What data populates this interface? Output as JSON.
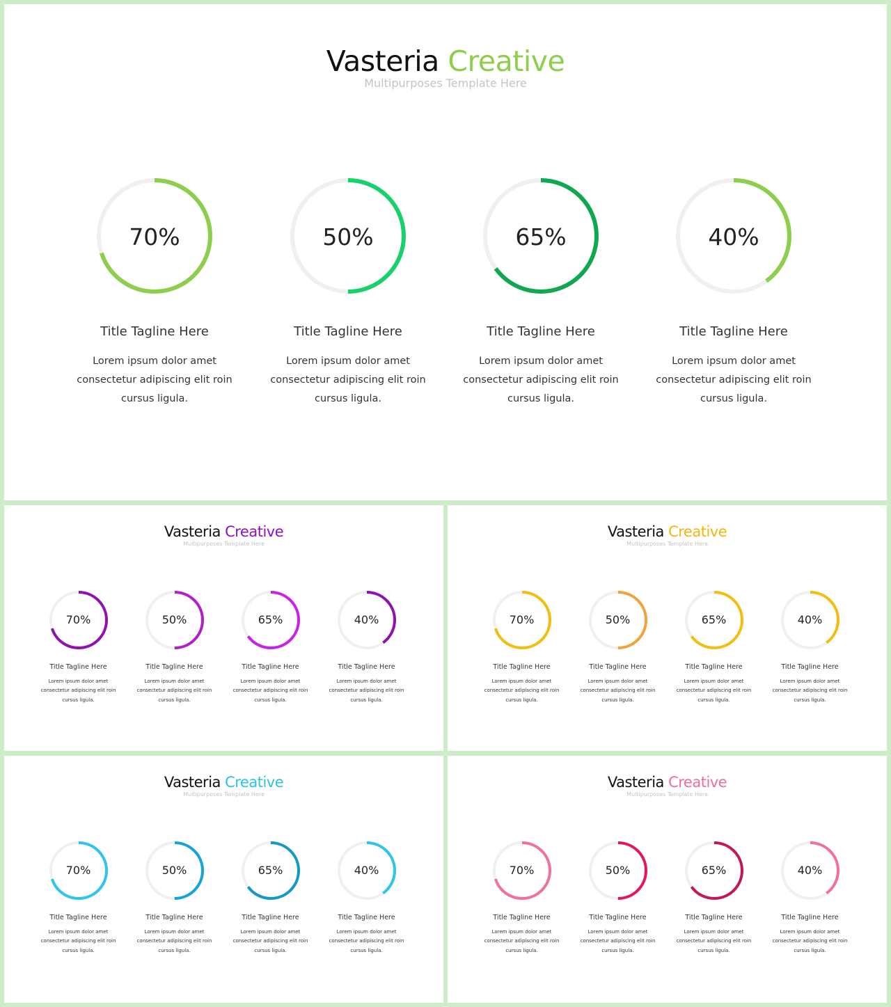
{
  "slides": [
    {
      "title_main": "Vasteria",
      "title_accent": "Creative",
      "accent_color": "#8dcf4d",
      "subtitle": "Multipurposes Template Here",
      "items": [
        {
          "percent": 70,
          "label": "70%",
          "color": "#8dcf4d",
          "tagline": "Title Tagline  Here",
          "desc": [
            "Lorem ipsum dolor amet",
            "consectetur adipiscing elit roin",
            "cursus ligula."
          ]
        },
        {
          "percent": 50,
          "label": "50%",
          "color": "#19d16a",
          "tagline": "Title Tagline  Here",
          "desc": [
            "Lorem ipsum dolor amet",
            "consectetur adipiscing elit roin",
            "cursus ligula."
          ]
        },
        {
          "percent": 65,
          "label": "65%",
          "color": "#0fa84e",
          "tagline": "Title Tagline  Here",
          "desc": [
            "Lorem ipsum dolor amet",
            "consectetur adipiscing elit roin",
            "cursus ligula."
          ]
        },
        {
          "percent": 40,
          "label": "40%",
          "color": "#8dcf4d",
          "tagline": "Title Tagline  Here",
          "desc": [
            "Lorem ipsum dolor amet",
            "consectetur adipiscing elit roin",
            "cursus ligula."
          ]
        }
      ]
    },
    {
      "title_main": "Vasteria",
      "title_accent": "Creative",
      "accent_color": "#8f12c1",
      "subtitle": "Multipurposes Template Here",
      "items": [
        {
          "percent": 70,
          "label": "70%",
          "color": "#8f12b0",
          "tagline": "Title Tagline  Here",
          "desc": [
            "Lorem ipsum dolor amet",
            "consectetur adipiscing elit roin",
            "cursus ligula."
          ]
        },
        {
          "percent": 50,
          "label": "50%",
          "color": "#b51ccc",
          "tagline": "Title Tagline  Here",
          "desc": [
            "Lorem ipsum dolor amet",
            "consectetur adipiscing elit roin",
            "cursus ligula."
          ]
        },
        {
          "percent": 65,
          "label": "65%",
          "color": "#c922e6",
          "tagline": "Title Tagline  Here",
          "desc": [
            "Lorem ipsum dolor amet",
            "consectetur adipiscing elit roin",
            "cursus ligula."
          ]
        },
        {
          "percent": 40,
          "label": "40%",
          "color": "#8f12b0",
          "tagline": "Title Tagline  Here",
          "desc": [
            "Lorem ipsum dolor amet",
            "consectetur adipiscing elit roin",
            "cursus ligula."
          ]
        }
      ]
    },
    {
      "title_main": "Vasteria",
      "title_accent": "Creative",
      "accent_color": "#f4b60e",
      "subtitle": "Multipurposes Template Here",
      "items": [
        {
          "percent": 70,
          "label": "70%",
          "color": "#f4bd12",
          "tagline": "Title Tagline  Here",
          "desc": [
            "Lorem ipsum dolor amet",
            "consectetur adipiscing elit roin",
            "cursus ligula."
          ]
        },
        {
          "percent": 50,
          "label": "50%",
          "color": "#f0a23c",
          "tagline": "Title Tagline  Here",
          "desc": [
            "Lorem ipsum dolor amet",
            "consectetur adipiscing elit roin",
            "cursus ligula."
          ]
        },
        {
          "percent": 65,
          "label": "65%",
          "color": "#f4bd12",
          "tagline": "Title Tagline  Here",
          "desc": [
            "Lorem ipsum dolor amet",
            "consectetur adipiscing elit roin",
            "cursus ligula."
          ]
        },
        {
          "percent": 40,
          "label": "40%",
          "color": "#f4bd12",
          "tagline": "Title Tagline  Here",
          "desc": [
            "Lorem ipsum dolor amet",
            "consectetur adipiscing elit roin",
            "cursus ligula."
          ]
        }
      ]
    },
    {
      "title_main": "Vasteria",
      "title_accent": "Creative",
      "accent_color": "#2dc1e8",
      "subtitle": "Multipurposes Template Here",
      "items": [
        {
          "percent": 70,
          "label": "70%",
          "color": "#2ec4ec",
          "tagline": "Title Tagline  Here",
          "desc": [
            "Lorem ipsum dolor amet",
            "consectetur adipiscing elit roin",
            "cursus ligula."
          ]
        },
        {
          "percent": 50,
          "label": "50%",
          "color": "#12a6d8",
          "tagline": "Title Tagline  Here",
          "desc": [
            "Lorem ipsum dolor amet",
            "consectetur adipiscing elit roin",
            "cursus ligula."
          ]
        },
        {
          "percent": 65,
          "label": "65%",
          "color": "#1598c6",
          "tagline": "Title Tagline  Here",
          "desc": [
            "Lorem ipsum dolor amet",
            "consectetur adipiscing elit roin",
            "cursus ligula."
          ]
        },
        {
          "percent": 40,
          "label": "40%",
          "color": "#2ec4ec",
          "tagline": "Title Tagline  Here",
          "desc": [
            "Lorem ipsum dolor amet",
            "consectetur adipiscing elit roin",
            "cursus ligula."
          ]
        }
      ]
    },
    {
      "title_main": "Vasteria",
      "title_accent": "Creative",
      "accent_color": "#ef6d9e",
      "subtitle": "Multipurposes Template Here",
      "items": [
        {
          "percent": 70,
          "label": "70%",
          "color": "#f0719f",
          "tagline": "Title Tagline  Here",
          "desc": [
            "Lorem ipsum dolor amet",
            "consectetur adipiscing elit roin",
            "cursus ligula."
          ]
        },
        {
          "percent": 50,
          "label": "50%",
          "color": "#e31663",
          "tagline": "Title Tagline  Here",
          "desc": [
            "Lorem ipsum dolor amet",
            "consectetur adipiscing elit roin",
            "cursus ligula."
          ]
        },
        {
          "percent": 65,
          "label": "65%",
          "color": "#c2185b",
          "tagline": "Title Tagline  Here",
          "desc": [
            "Lorem ipsum dolor amet",
            "consectetur adipiscing elit roin",
            "cursus ligula."
          ]
        },
        {
          "percent": 40,
          "label": "40%",
          "color": "#f0719f",
          "tagline": "Title Tagline  Here",
          "desc": [
            "Lorem ipsum dolor amet",
            "consectetur adipiscing elit roin",
            "cursus ligula."
          ]
        }
      ]
    }
  ],
  "colors": {
    "frame": "#cdedc9",
    "track": "#f0f0f0",
    "subtitle": "#c4c4c4"
  }
}
